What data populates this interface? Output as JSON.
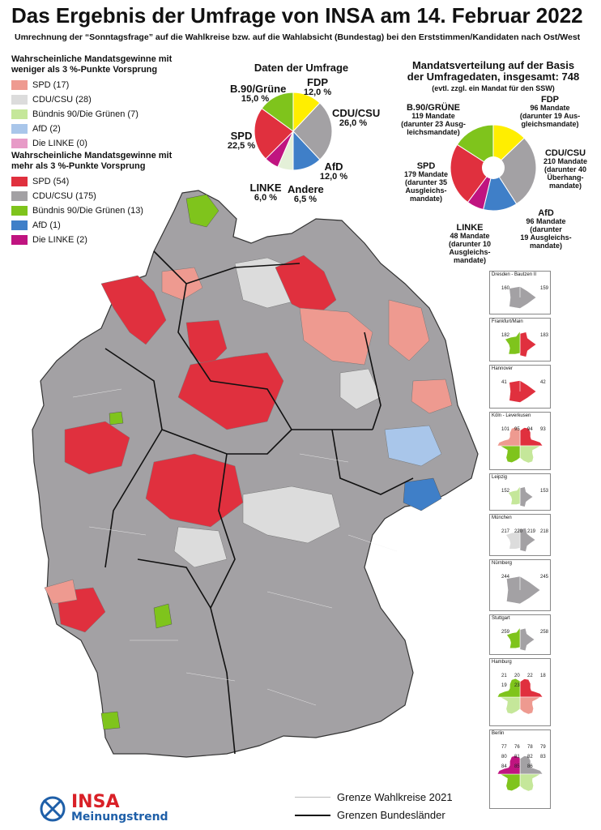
{
  "title": "Das Ergebnis der Umfrage von INSA am 14. Februar 2022",
  "subtitle": "Umrechnung der “Sonntagsfrage” auf die Wahlkreise bzw. auf die Wahlabsicht (Bundestag) bei den Erststimmen/Kandidaten nach Ost/West",
  "legend_low": {
    "heading": "Wahrscheinliche Mandatsgewinne mit weniger als 3 %-Punkte Vorsprung",
    "items": [
      {
        "label": "SPD (17)",
        "color": "#ee9a90"
      },
      {
        "label": "CDU/CSU (28)",
        "color": "#dcdcdc"
      },
      {
        "label": "Bündnis 90/Die Grünen (7)",
        "color": "#c5e79a"
      },
      {
        "label": "AfD (2)",
        "color": "#a9c6ea"
      },
      {
        "label": "Die LINKE (0)",
        "color": "#e79bc7"
      }
    ]
  },
  "legend_high": {
    "heading": "Wahrscheinliche Mandatsgewinne mit mehr als 3 %-Punkte Vorsprung",
    "items": [
      {
        "label": "SPD (54)",
        "color": "#e0303e"
      },
      {
        "label": "CDU/CSU (175)",
        "color": "#a3a1a4"
      },
      {
        "label": "Bündnis 90/Die Grünen (13)",
        "color": "#7fc41c"
      },
      {
        "label": "AfD (1)",
        "color": "#3f7fc8"
      },
      {
        "label": "Die LINKE (2)",
        "color": "#c01480"
      }
    ]
  },
  "poll": {
    "title": "Daten der Umfrage",
    "slices": [
      {
        "party": "FDP",
        "value": "12,0 %",
        "pct": 12.0,
        "color": "#ffee00"
      },
      {
        "party": "CDU/CSU",
        "value": "26,0 %",
        "pct": 26.0,
        "color": "#a3a1a4"
      },
      {
        "party": "AfD",
        "value": "12,0 %",
        "pct": 12.0,
        "color": "#3f7fc8"
      },
      {
        "party": "Andere",
        "value": "6,5 %",
        "pct": 6.5,
        "color": "#e4f0d8"
      },
      {
        "party": "LINKE",
        "value": "6,0 %",
        "pct": 6.0,
        "color": "#c01480"
      },
      {
        "party": "SPD",
        "value": "22,5 %",
        "pct": 22.5,
        "color": "#e0303e"
      },
      {
        "party": "B.90/Grüne",
        "value": "15,0 %",
        "pct": 15.0,
        "color": "#7fc41c"
      }
    ]
  },
  "seats": {
    "title_line1": "Mandatsverteilung auf der Basis",
    "title_line2": "der Umfragedaten, insgesamt: 748",
    "note": "(evtl. zzgl. ein Mandat für den SSW)",
    "slices": [
      {
        "party": "FDP",
        "line1": "96 Mandate",
        "line2": "(darunter 19 Aus-",
        "line3": "gleichsmandate)",
        "seats": 96,
        "color": "#ffee00"
      },
      {
        "party": "CDU/CSU",
        "line1": "210 Mandate",
        "line2": "(darunter 40",
        "line3": "Überhang-",
        "line4": "mandate)",
        "seats": 210,
        "color": "#a3a1a4"
      },
      {
        "party": "AfD",
        "line1": "96 Mandate",
        "line2": "(darunter",
        "line3": "19 Ausgleichs-",
        "line4": "mandate)",
        "seats": 96,
        "color": "#3f7fc8"
      },
      {
        "party": "LINKE",
        "line1": "48 Mandate",
        "line2": "(darunter 10",
        "line3": "Ausgleichs-",
        "line4": "mandate)",
        "seats": 48,
        "color": "#c01480"
      },
      {
        "party": "SPD",
        "line1": "179 Mandate",
        "line2": "(darunter 35",
        "line3": "Ausgleichs-",
        "line4": "mandate)",
        "seats": 179,
        "color": "#e0303e"
      },
      {
        "party": "B.90/GRÜNE",
        "line1": "119 Mandate",
        "line2": "(darunter 23 Ausg-",
        "line3": "leichsmandate)",
        "seats": 119,
        "color": "#7fc41c"
      }
    ]
  },
  "insets": [
    {
      "name": "Dresden - Bautzen II",
      "labels": [
        "160",
        "159"
      ]
    },
    {
      "name": "Frankfurt/Main",
      "labels": [
        "182",
        "183"
      ]
    },
    {
      "name": "Hannover",
      "labels": [
        "41",
        "42"
      ]
    },
    {
      "name": "Köln - Leverkusen",
      "labels": [
        "101",
        "95",
        "94",
        "93"
      ]
    },
    {
      "name": "Leipzig",
      "labels": [
        "152",
        "153"
      ]
    },
    {
      "name": "München",
      "labels": [
        "217",
        "220",
        "219",
        "218"
      ]
    },
    {
      "name": "Nürnberg",
      "labels": [
        "244",
        "245"
      ]
    },
    {
      "name": "Stuttgart",
      "labels": [
        "259",
        "258"
      ]
    },
    {
      "name": "Hamburg",
      "labels": [
        "21",
        "20",
        "22",
        "18",
        "19",
        "23"
      ]
    },
    {
      "name": "Berlin",
      "labels": [
        "77",
        "76",
        "78",
        "79",
        "80",
        "81",
        "82",
        "83",
        "84",
        "85",
        "86"
      ]
    }
  ],
  "bottom_legend": {
    "wahlkreise": "Grenze Wahlkreise 2021",
    "laender": "Grenzen Bundesländer"
  },
  "logo": {
    "brand": "INSA",
    "tagline": "Meinungstrend"
  },
  "map_colors": {
    "cdu_strong": "#a3a1a4",
    "cdu_weak": "#dcdcdc",
    "spd_strong": "#e0303e",
    "spd_weak": "#ee9a90",
    "gruene_strong": "#7fc41c",
    "afd_strong": "#3f7fc8",
    "afd_weak": "#a9c6ea"
  }
}
